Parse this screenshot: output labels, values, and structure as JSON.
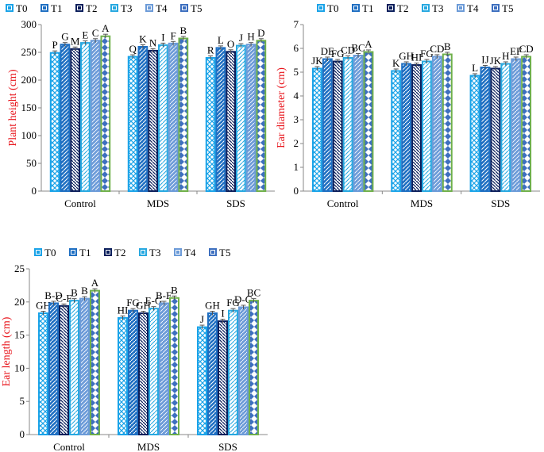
{
  "figure_title": "",
  "chart_data": [
    {
      "type": "bar",
      "ylabel": "Plant height (cm)",
      "ylim": [
        0,
        300
      ],
      "yticks": [
        0,
        50,
        100,
        150,
        200,
        250,
        300
      ],
      "categories": [
        "Control",
        "MDS",
        "SDS"
      ],
      "legend": [
        "T0",
        "T1",
        "T2",
        "T3",
        "T4",
        "T5"
      ],
      "series": [
        {
          "name": "T0",
          "values": [
            249,
            242,
            240
          ],
          "labels": [
            "P",
            "Q",
            "R"
          ]
        },
        {
          "name": "T1",
          "values": [
            264,
            260,
            258
          ],
          "labels": [
            "G",
            "K",
            "L"
          ]
        },
        {
          "name": "T2",
          "values": [
            256,
            253,
            251
          ],
          "labels": [
            "M",
            "N",
            "O"
          ]
        },
        {
          "name": "T3",
          "values": [
            267,
            263,
            262
          ],
          "labels": [
            "E",
            "I",
            "J"
          ]
        },
        {
          "name": "T4",
          "values": [
            271,
            266,
            264
          ],
          "labels": [
            "C",
            "F",
            "H"
          ]
        },
        {
          "name": "T5",
          "values": [
            279,
            275,
            271
          ],
          "labels": [
            "A",
            "B",
            "D"
          ]
        }
      ]
    },
    {
      "type": "bar",
      "ylabel": "Ear diameter (cm)",
      "ylim": [
        0,
        7
      ],
      "yticks": [
        0,
        1,
        2,
        3,
        4,
        5,
        6,
        7
      ],
      "categories": [
        "Control",
        "MDS",
        "SDS"
      ],
      "legend": [
        "T0",
        "T1",
        "T2",
        "T3",
        "T4",
        "T5"
      ],
      "series": [
        {
          "name": "T0",
          "values": [
            5.15,
            5.05,
            4.85
          ],
          "labels": [
            "JK",
            "K",
            "L"
          ]
        },
        {
          "name": "T1",
          "values": [
            5.55,
            5.35,
            5.2
          ],
          "labels": [
            "DE",
            "GH",
            "IJ"
          ]
        },
        {
          "name": "T2",
          "values": [
            5.45,
            5.3,
            5.15
          ],
          "labels": [
            "FG",
            "HI",
            "JK"
          ]
        },
        {
          "name": "T3",
          "values": [
            5.6,
            5.45,
            5.35
          ],
          "labels": [
            "CD",
            "FG",
            "H"
          ]
        },
        {
          "name": "T4",
          "values": [
            5.7,
            5.65,
            5.55
          ],
          "labels": [
            "BC",
            "CD",
            "EF"
          ]
        },
        {
          "name": "T5",
          "values": [
            5.85,
            5.75,
            5.65
          ],
          "labels": [
            "A",
            "B",
            "CD"
          ]
        }
      ]
    },
    {
      "type": "bar",
      "ylabel": "Ear length (cm)",
      "ylim": [
        0,
        25
      ],
      "yticks": [
        0,
        5,
        10,
        15,
        20,
        25
      ],
      "categories": [
        "Control",
        "MDS",
        "SDS"
      ],
      "legend": [
        "T0",
        "T1",
        "T2",
        "T3",
        "T4",
        "T5"
      ],
      "series": [
        {
          "name": "T0",
          "values": [
            18.3,
            17.6,
            16.2
          ],
          "labels": [
            "GH",
            "HI",
            "J"
          ]
        },
        {
          "name": "T1",
          "values": [
            19.8,
            18.7,
            18.3
          ],
          "labels": [
            "B-D",
            "FG",
            "GH"
          ]
        },
        {
          "name": "T2",
          "values": [
            19.4,
            18.3,
            17.1
          ],
          "labels": [
            "C-F",
            "GH",
            "I"
          ]
        },
        {
          "name": "T3",
          "values": [
            20.2,
            19.0,
            18.7
          ],
          "labels": [
            "B",
            "E-G",
            "FG"
          ]
        },
        {
          "name": "T4",
          "values": [
            20.5,
            19.8,
            19.2
          ],
          "labels": [
            "B",
            "B-E",
            "D-G"
          ]
        },
        {
          "name": "T5",
          "values": [
            21.7,
            20.6,
            20.2
          ],
          "labels": [
            "A",
            "B",
            "BC"
          ]
        }
      ]
    }
  ]
}
